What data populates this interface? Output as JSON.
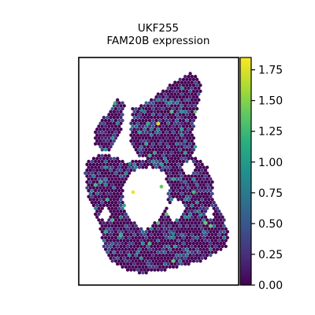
{
  "chart_data": {
    "type": "heatmap",
    "title": "UKF255",
    "subtitle": "FAM20B expression",
    "xlabel": "",
    "ylabel": "",
    "colormap": "viridis",
    "colorbar": {
      "range": [
        0.0,
        1.85
      ],
      "ticks": [
        0.0,
        0.25,
        0.5,
        0.75,
        1.0,
        1.25,
        1.5,
        1.75
      ],
      "tick_labels": [
        "0.00",
        "0.25",
        "0.50",
        "0.75",
        "1.00",
        "1.25",
        "1.50",
        "1.75"
      ],
      "placement": "right"
    },
    "grid": false,
    "colors": {
      "low": "#440154",
      "mid": "#21918c",
      "high": "#fde725",
      "frame": "#000000"
    },
    "highlight_spots": [
      {
        "x": 201,
        "y": 157,
        "value": 1.75
      },
      {
        "x": 169,
        "y": 244,
        "value": 1.8
      },
      {
        "x": 146,
        "y": 131,
        "value": 1.2
      },
      {
        "x": 246,
        "y": 244,
        "value": 1.3
      },
      {
        "x": 205,
        "y": 237,
        "value": 1.4
      },
      {
        "x": 220,
        "y": 297,
        "value": 0.9
      },
      {
        "x": 255,
        "y": 273,
        "value": 1.0
      },
      {
        "x": 165,
        "y": 208,
        "value": 0.85
      },
      {
        "x": 232,
        "y": 112,
        "value": 1.0
      },
      {
        "x": 180,
        "y": 140,
        "value": 0.9
      }
    ]
  }
}
